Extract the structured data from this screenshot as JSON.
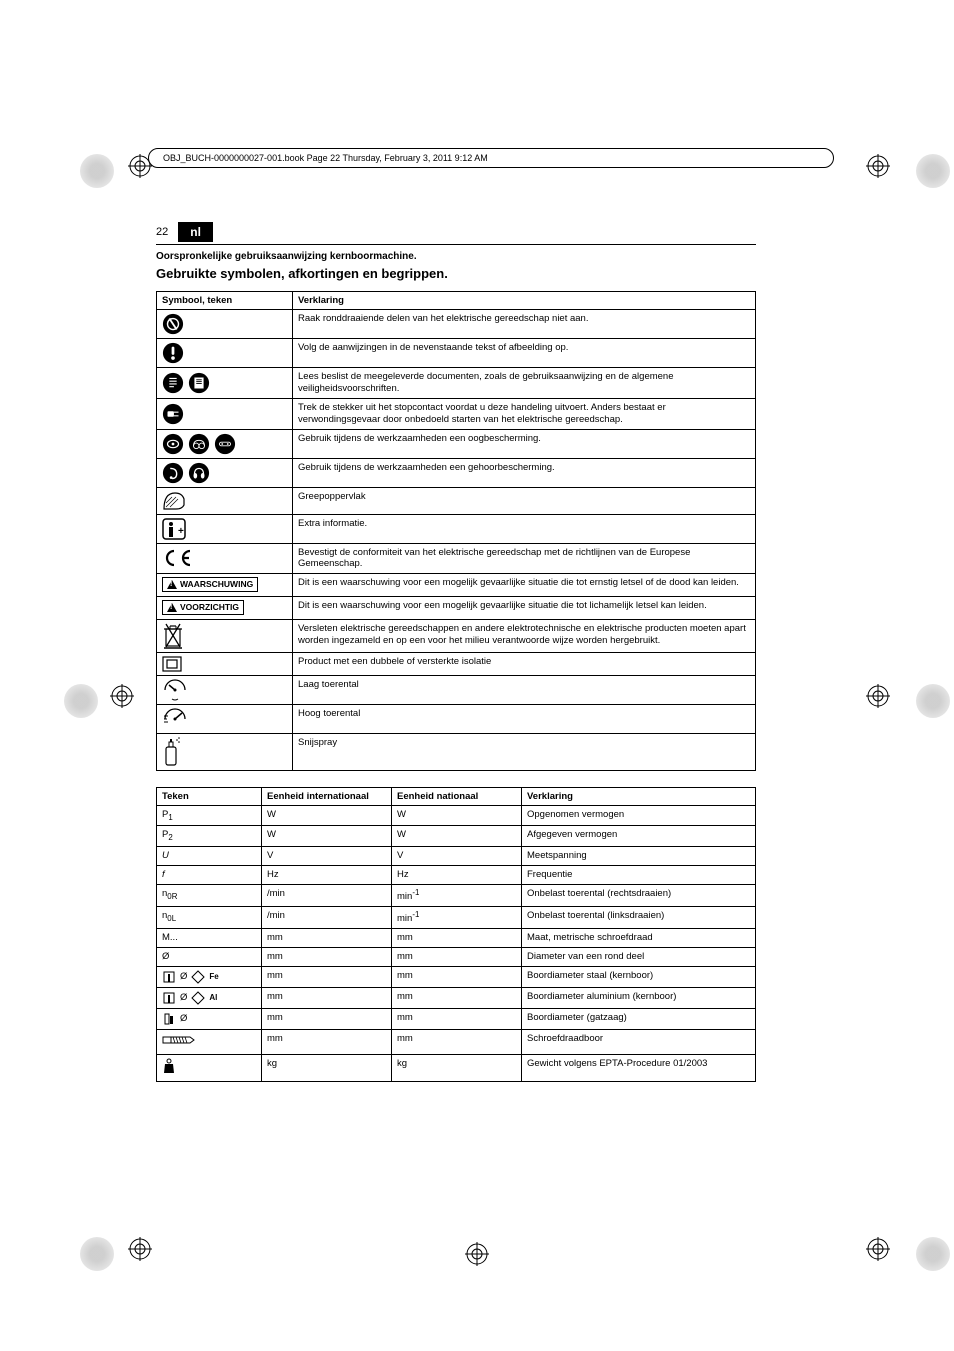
{
  "header_text": "OBJ_BUCH-0000000027-001.book  Page 22  Thursday, February 3, 2011  9:12 AM",
  "page_number": "22",
  "lang_badge": "nl",
  "subtitle": "Oorspronkelijke gebruiksaanwijzing kernboormachine.",
  "section_title": "Gebruikte symbolen, afkortingen en begrippen.",
  "colors": {
    "text": "#000000",
    "background": "#ffffff",
    "border": "#000000",
    "badge_bg": "#000000",
    "badge_fg": "#ffffff"
  },
  "table1": {
    "headers": [
      "Symbool, teken",
      "Verklaring"
    ],
    "rows": [
      {
        "icon": "no-touch-rotating",
        "text": "Raak ronddraaiende delen van het elektrische gereedschap niet aan."
      },
      {
        "icon": "info-exclaim",
        "text": "Volg de aanwijzingen in de nevenstaande tekst of afbeelding op."
      },
      {
        "icon": "read-docs",
        "text": "Lees beslist de meegeleverde documenten, zoals de gebruiksaanwijzing en de algemene veiligheidsvoorschriften."
      },
      {
        "icon": "unplug",
        "text": "Trek de stekker uit het stopcontact voordat u deze handeling uitvoert. Anders bestaat er verwondingsgevaar door onbedoeld starten van het elektrische gereedschap."
      },
      {
        "icon": "eye-protection",
        "text": "Gebruik tijdens de werkzaamheden een oogbescherming."
      },
      {
        "icon": "ear-protection",
        "text": "Gebruik tijdens de werkzaamheden een gehoorbescherming."
      },
      {
        "icon": "grip",
        "text": "Greepoppervlak"
      },
      {
        "icon": "extra-info",
        "text": "Extra informatie."
      },
      {
        "icon": "ce-mark",
        "text": "Bevestigt de conformiteit van het elektrische gereedschap met de richtlijnen van de Europese Gemeenschap."
      },
      {
        "icon": "warning-label",
        "label": "WAARSCHUWING",
        "text": "Dit is een waarschuwing voor een mogelijk gevaarlijke situatie die tot ernstig letsel of de dood kan leiden."
      },
      {
        "icon": "caution-label",
        "label": "VOORZICHTIG",
        "text": "Dit is een waarschuwing voor een mogelijk gevaarlijke situatie die tot lichamelijk letsel kan leiden."
      },
      {
        "icon": "recycle-bin",
        "text": "Versleten elektrische gereedschappen en andere elektrotechnische en elektrische producten moeten apart worden ingezameld en op een voor het milieu verantwoorde wijze worden hergebruikt."
      },
      {
        "icon": "double-insulation",
        "text": "Product met een dubbele of versterkte isolatie"
      },
      {
        "icon": "low-speed",
        "text": "Laag toerental"
      },
      {
        "icon": "high-speed",
        "text": "Hoog toerental"
      },
      {
        "icon": "spray-can",
        "text": "Snijspray"
      }
    ]
  },
  "table2": {
    "headers": [
      "Teken",
      "Eenheid internationaal",
      "Eenheid nationaal",
      "Verklaring"
    ],
    "rows": [
      {
        "sign": "P<sub>1</sub>",
        "intl": "W",
        "nat": "W",
        "desc": "Opgenomen vermogen"
      },
      {
        "sign": "P<sub>2</sub>",
        "intl": "W",
        "nat": "W",
        "desc": "Afgegeven vermogen"
      },
      {
        "sign": "<i>U</i>",
        "intl": "V",
        "nat": "V",
        "desc": "Meetspanning"
      },
      {
        "sign": "<i>f</i>",
        "intl": "Hz",
        "nat": "Hz",
        "desc": "Frequentie"
      },
      {
        "sign": "n<sub>0R</sub>",
        "intl": "/min",
        "nat": "min<sup>-1</sup>",
        "desc": "Onbelast toerental (rechtsdraaien)"
      },
      {
        "sign": "n<sub>0L</sub>",
        "intl": "/min",
        "nat": "min<sup>-1</sup>",
        "desc": "Onbelast toerental (linksdraaien)"
      },
      {
        "sign": "M...",
        "intl": "mm",
        "nat": "mm",
        "desc": "Maat, metrische schroefdraad"
      },
      {
        "sign": "Ø",
        "intl": "mm",
        "nat": "mm",
        "desc": "Diameter van een rond deel"
      },
      {
        "sign_icon": "core-fe",
        "intl": "mm",
        "nat": "mm",
        "desc": "Boordiameter staal (kernboor)"
      },
      {
        "sign_icon": "core-al",
        "intl": "mm",
        "nat": "mm",
        "desc": "Boordiameter aluminium (kernboor)"
      },
      {
        "sign_icon": "hole-saw",
        "intl": "mm",
        "nat": "mm",
        "desc": "Boordiameter (gatzaag)"
      },
      {
        "sign_icon": "thread-drill",
        "intl": "mm",
        "nat": "mm",
        "desc": "Schroefdraadboor"
      },
      {
        "sign_icon": "weight",
        "intl": "kg",
        "nat": "kg",
        "desc": "Gewicht volgens EPTA-Procedure 01/2003"
      }
    ]
  }
}
